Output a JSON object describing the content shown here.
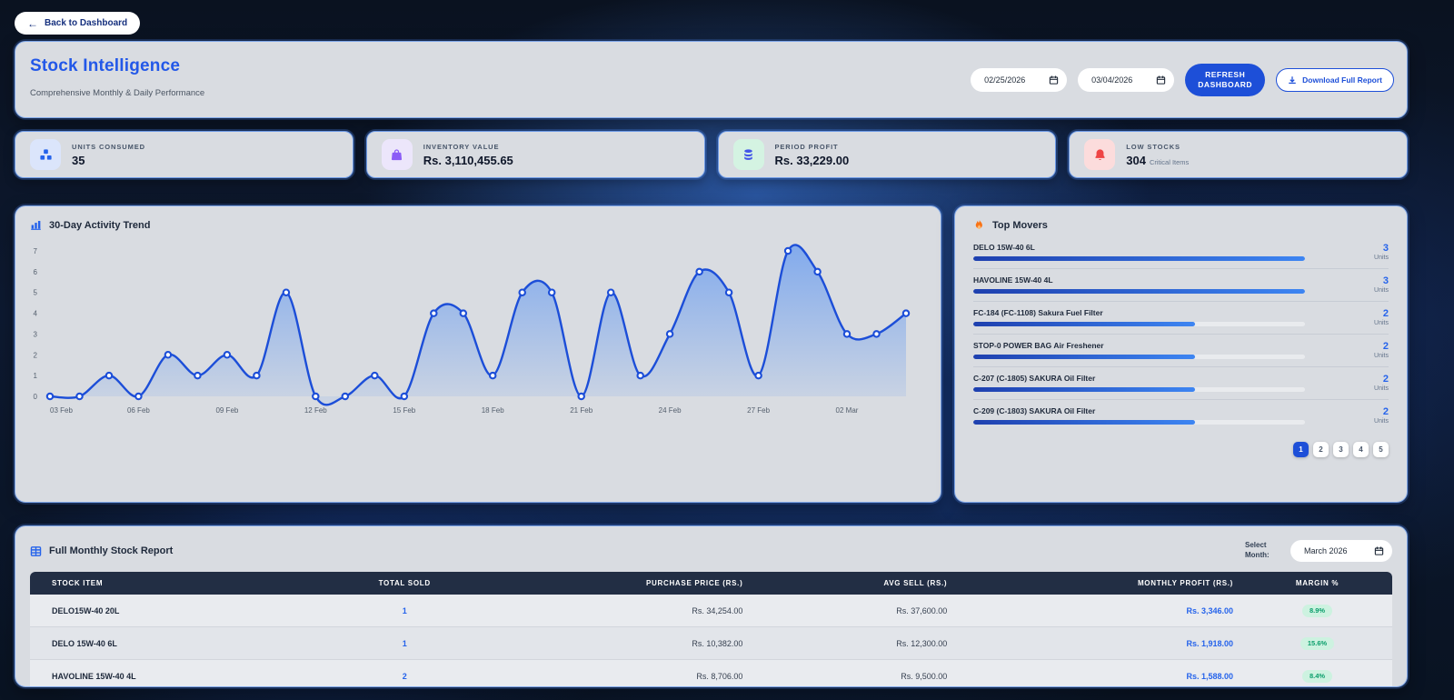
{
  "back_button": {
    "arrow": "←",
    "label": "Back to Dashboard"
  },
  "header": {
    "title": "Stock Intelligence",
    "subtitle": "Comprehensive Monthly & Daily Performance",
    "date_from": "02/25/2026",
    "date_to": "03/04/2026",
    "refresh_label": "REFRESH DASHBOARD",
    "download_label": "Download Full Report"
  },
  "stats": [
    {
      "label": "UNITS CONSUMED",
      "value": "35",
      "suffix": "",
      "icon": "units-boxes-icon",
      "icon_color": "#2563eb",
      "icon_bg": "#dbe5fb"
    },
    {
      "label": "INVENTORY VALUE",
      "value": "Rs. 3,110,455.65",
      "suffix": "",
      "icon": "inventory-bag-icon",
      "icon_color": "#8b5cf6",
      "icon_bg": "#ece6fb"
    },
    {
      "label": "PERIOD PROFIT",
      "value": "Rs. 33,229.00",
      "suffix": "",
      "icon": "profit-coins-icon",
      "icon_color": "#4355e8",
      "icon_bg": "#d4f3e2"
    },
    {
      "label": "LOW STOCKS",
      "value": "304",
      "suffix": "Critical Items",
      "icon": "alert-bell-icon",
      "icon_color": "#ef4444",
      "icon_bg": "#fcdcdc"
    }
  ],
  "chart_data": {
    "type": "area",
    "title": "30-Day Activity Trend",
    "x": [
      "03 Feb",
      "04 Feb",
      "05 Feb",
      "06 Feb",
      "07 Feb",
      "08 Feb",
      "09 Feb",
      "10 Feb",
      "11 Feb",
      "12 Feb",
      "13 Feb",
      "14 Feb",
      "15 Feb",
      "16 Feb",
      "17 Feb",
      "18 Feb",
      "19 Feb",
      "20 Feb",
      "21 Feb",
      "22 Feb",
      "23 Feb",
      "24 Feb",
      "25 Feb",
      "26 Feb",
      "27 Feb",
      "28 Feb",
      "01 Mar",
      "02 Mar",
      "03 Mar",
      "04 Mar"
    ],
    "values": [
      0,
      0,
      1,
      0,
      2,
      1,
      2,
      1,
      5,
      0,
      0,
      1,
      0,
      4,
      4,
      1,
      5,
      5,
      0,
      5,
      1,
      3,
      6,
      5,
      1,
      7,
      6,
      3,
      3,
      4
    ],
    "tick_every": 3,
    "ylim": [
      0,
      7
    ],
    "xlabel": "",
    "ylabel": "",
    "grid": false,
    "legend": false,
    "line_color": "#1c4ed8",
    "fill_color": "#3b82f6",
    "axis_text_color": "#55606e"
  },
  "top_movers": {
    "title": "Top Movers",
    "unit_label": "Units",
    "items": [
      {
        "name": "DELO 15W-40 6L",
        "units": 3
      },
      {
        "name": "HAVOLINE 15W-40 4L",
        "units": 3
      },
      {
        "name": "FC-184 (FC-1108) Sakura Fuel Filter",
        "units": 2
      },
      {
        "name": "STOP-0 POWER BAG Air Freshener",
        "units": 2
      },
      {
        "name": "C-207 (C-1805) SAKURA Oil Filter",
        "units": 2
      },
      {
        "name": "C-209 (C-1803) SAKURA Oil Filter",
        "units": 2
      }
    ],
    "pages": [
      "1",
      "2",
      "3",
      "4",
      "5"
    ],
    "active_page_index": 0
  },
  "report": {
    "title": "Full Monthly Stock Report",
    "select_month_label": "Select Month:",
    "month_value": "March 2026",
    "columns": [
      "STOCK ITEM",
      "TOTAL SOLD",
      "PURCHASE PRICE (RS.)",
      "AVG SELL (RS.)",
      "MONTHLY PROFIT (RS.)",
      "MARGIN %"
    ],
    "rows": [
      {
        "item": "DELO15W-40 20L",
        "sold": "1",
        "purchase": "Rs. 34,254.00",
        "avg_sell": "Rs. 37,600.00",
        "profit": "Rs. 3,346.00",
        "margin": "8.9%"
      },
      {
        "item": "DELO 15W-40 6L",
        "sold": "1",
        "purchase": "Rs. 10,382.00",
        "avg_sell": "Rs. 12,300.00",
        "profit": "Rs. 1,918.00",
        "margin": "15.6%"
      },
      {
        "item": "HAVOLINE 15W-40 4L",
        "sold": "2",
        "purchase": "Rs. 8,706.00",
        "avg_sell": "Rs. 9,500.00",
        "profit": "Rs. 1,588.00",
        "margin": "8.4%"
      }
    ]
  }
}
